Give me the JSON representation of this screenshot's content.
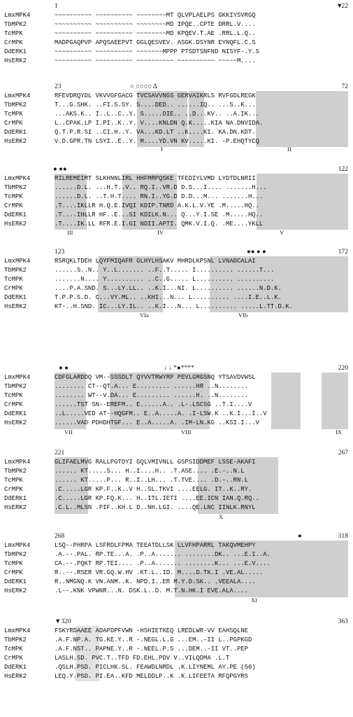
{
  "colors": {
    "shade": "#cfcfcf",
    "shade_light": "#e2e2e2",
    "text": "#111111"
  },
  "blocks": [
    {
      "start_label": "1",
      "end_label": "22",
      "start_mark": "",
      "overlay": "▼",
      "rows": [
        {
          "name": "LmxMPK4",
          "seq": "~~~~~~~~~~ ~~~~~~~~~~ ~~~~~~~~MT QLVPLAELPS GKKIYSVRGQ"
        },
        {
          "name": "TbMPK2",
          "seq": "~~~~~~~~~~ ~~~~~~~~~~ ~~~~~~~~MD IPQE..CPTE DRRL.V...."
        },
        {
          "name": "TcMPK",
          "seq": "~~~~~~~~~~ ~~~~~~~~~~ ~~~~~~~~MD KPQEV.T.AE .RRL.L.Q.."
        },
        {
          "name": "CrMPK",
          "seq": "MADPGAQPVP APQSAEEPVT GGLQESVEV. ASGK.DSYNR EYNQFL.C.S"
        },
        {
          "name": "DdERK1",
          "seq": "~~~~~~~~~~ ~~~~~~~~~~ ~~~~~~~MPPP PTSDTSNFND NISYF-.Y.S"
        },
        {
          "name": "HsERK2",
          "seq": "~~~~~~~~~~ ~~~~~~~~~~ ~~~~~~~~~~ ~~~~~~~~~~ ~~~~~M...."
        }
      ],
      "labels": []
    },
    {
      "start_label": "23",
      "end_label": "72",
      "start_mark": "",
      "overlay": "○ ○○○○  Δ",
      "rows": [
        {
          "name": "LmxMPK4",
          "seq": "RFEVDRQYDL VKVVGFGACG TVCSAVVNGS GERVAIKRLS RVFGDLREGK"
        },
        {
          "name": "TbMPK2",
          "seq": "T...G.SHK. ..FI.S.SY. S....DED.. ......IQ.. ...S..K..."
        },
        {
          "name": "TcMPK",
          "seq": "...AKS.K.. I..L..C..Y. S.....DIE.. ..D...KV.. ..A.IK..."
        },
        {
          "name": "CrMPK",
          "seq": "L..CPAK.LP I.PI..K..Y. V....KNLDN Q.K.....KIA NA.DNVIDA."
        },
        {
          "name": "DdERK1",
          "seq": "Q.T.P.R.SI ..CI.H..Y. VA...KD.LT ..K....KI. KA.DN.KDT."
        },
        {
          "name": "HsERK2",
          "seq": "V.D.GPR.TN LSYI..E..Y. M....YD.VN KV.....KI. -P.EHQTYCQ"
        }
      ],
      "labels": [
        "I",
        "II"
      ]
    },
    {
      "start_label": "",
      "end_label": "122",
      "start_mark": "● ●●",
      "overlay": "",
      "rows": [
        {
          "name": "LmxMPK4",
          "seq": "RILREMEIMT SLKHNNLIRL HHFMRPQSKE TFEDIYLVMD LYDTDLNRII"
        },
        {
          "name": "TbMPK2",
          "seq": "......D.L. ...H.T..V.. RQ.I..VR.D D.S...I.... .......H..."
        },
        {
          "name": "TcMPK",
          "seq": "......D.L. ..T.H.T.... RN.I..YG.D D.D...M... .......H..."
        },
        {
          "name": "CrMPK",
          "seq": ".T....IKLLR H.Q.E.IVQI KDIP.TNRD A.K.L.V.YE .M.....HQ.."
        },
        {
          "name": "DdERK1",
          "seq": ".T....IHLLR HF..E...SI KDILK.N... Q...Y.I.SE .M.....HQ.."
        },
        {
          "name": "HsERK2",
          "seq": ".T....IK.LL RFR.E.I.GI NDII.APTI. QMK.V.I.Q. .ME....YKLL"
        }
      ],
      "labels": [
        "III",
        "IV",
        "V"
      ]
    },
    {
      "start_label": "123",
      "end_label": "172",
      "start_mark": "",
      "overlay": "●● ● ●",
      "rows": [
        {
          "name": "LmxMPK4",
          "seq": "RSRQKLTDEH LQYFMIQAFR GLHYLHSAKV MHRDLKPSNL LVNADCALAI"
        },
        {
          "name": "TbMPK2",
          "seq": "......S..N.. Y..L....... ..F..T..... I.......... ......T..."
        },
        {
          "name": "TcMPK",
          "seq": ".......N.... Y.......... ..C..G..... L.......... .........."
        },
        {
          "name": "CrMPK",
          "seq": "....P.A.SND. S...LY.LL.. ..K.I...NI. L.......... ......N.D.K."
        },
        {
          "name": "DdERK1",
          "seq": "T.P.P.S.D. C...VY.ML.. ..KHI...N... L.......... ....I.E..L.K."
        },
        {
          "name": "HsERK2",
          "seq": "KT-..H.SND. IC...LY.IL.. ..K.I...N... L.......... .....L.TT.D.K."
        }
      ],
      "labels": [
        "VIa",
        "VIb"
      ]
    },
    {
      "start_label": "",
      "end_label": "220",
      "start_mark": "● ●",
      "overlay": "↓  ↓  *●****",
      "rows": [
        {
          "name": "LmxMPK4",
          "seq": "CDFGLARDDQ VM--SSSDLT QYVVTRWYRP PEVLGMGSNQ YTSAVDVWSL"
        },
        {
          "name": "TbMPK2",
          "seq": "........ CT--QT.A... E......... ......HR ..N........"
        },
        {
          "name": "TcMPK",
          "seq": "........ WT--V.DA... E......... ......H. ..N........"
        },
        {
          "name": "CrMPK",
          "seq": "......TST SN--EREFM.. E......A.. .L-.LSCSG ..T.I....V"
        },
        {
          "name": "DdERK1",
          "seq": "..L.....VED AT--HQGFM.. E..A.....A. .I-LSW.K ..K.I...I..V"
        },
        {
          "name": "HsERK2",
          "seq": "......VAD PDHDHTGF... E..A.....A. .IM-LN.KG ..KSI.I...V"
        }
      ],
      "labels": [
        "VII",
        "VIII",
        "IX"
      ]
    },
    {
      "start_label": "221",
      "end_label": "267",
      "start_mark": "",
      "overlay": "",
      "rows": [
        {
          "name": "LmxMPK4",
          "seq": "GLIFAELMVG RALLPGTDYI GQLVMIVNLL GSPSIDDMEF LSSE-AKAFI"
        },
        {
          "name": "TbMPK2",
          "seq": "...... KT.....S... H..I....H.. .T.ASE.... .E.-..N.L"
        },
        {
          "name": "TcMPK",
          "seq": "...... KT.....P... R..I..LH... .T.TVE.... .D.-..RN.L"
        },
        {
          "name": "CrMPK",
          "seq": ".C.....LGR KP.F..K..V H..SL.TKVI ....EELG. IT..K..RY."
        },
        {
          "name": "DdERK1",
          "seq": ".C.....LGR KP.FQ.K... H..ITL.IETI ....EE.ICN IAN.Q.RQ.."
        },
        {
          "name": "HsERK2",
          "seq": ".C.L..MLSN .PIF..KH.L D..NH.LGI. ....QE.LNC IINLK.RNYL"
        }
      ],
      "labels": [
        "X"
      ]
    },
    {
      "start_label": "268",
      "end_label": "318",
      "start_mark": "",
      "overlay": "●",
      "rows": [
        {
          "name": "LmxMPK4",
          "seq": "LSQ--PHRPA LSFRDLFPMA TEEATDLLSK LLVFHPARRL TAKQVMEHPY"
        },
        {
          "name": "TbMPK2",
          "seq": ".A.--.PAL. RP.TE...A. .P..A....... ........DK.. ...E.I..A."
        },
        {
          "name": "TcMPK",
          "seq": "CA.--.PQKT RP.TEI.... .P..A....... ........K... ...E.V...."
        },
        {
          "name": "CrMPK",
          "seq": "R..--.RSER VR.GQ.W.HV .KT.L..ID. M....D.TK.I .VE.AL....."
        },
        {
          "name": "DdERK1",
          "seq": "R..NMGNQ.K VN.ANM..K. NPD.I..ER M.Y.D.SK.. .VEEALA...."
        },
        {
          "name": "HsERK2",
          "seq": ".L--.KNK VPWNR...N. DSK.L..D. M.T.N.HK.I EVE.ALA...."
        }
      ],
      "labels": [
        "XI"
      ]
    },
    {
      "start_label": "",
      "end_label": "363",
      "start_mark": "▼320",
      "overlay": "",
      "rows": [
        {
          "name": "LmxMPK4",
          "seq": "FSKYRDAAEE ADAPDPFVWN -HSHIETKEQ LREDLWR-VV EAHSQLNE"
        },
        {
          "name": "TbMPK2",
          "seq": ".A.F.NP.A. TG.KE.Y..R -.NEGL.L.G ...EM..-II L..PGPKGD"
        },
        {
          "name": "TcMPK",
          "seq": ".A.F.NST.. PAPNE.Y..R -.NEEL.P.S ...DEM..-II VT..PEP"
        },
        {
          "name": "CrMPK",
          "seq": "LASLH.SD. PVC.T..TFD FD.EHL.PDV V..VILQDMA .L.T"
        },
        {
          "name": "DdERK1",
          "seq": ".QSLH.PSD. PICLHK.SL. FEAWDLNRDL .K.LIYNEML AY.PE (50)"
        },
        {
          "name": "HsERK2",
          "seq": "LEQ.Y.PSD. PI.EA..KFD MELDDLP..K .K.LIFEETA RFQPGYRS"
        }
      ],
      "labels": []
    }
  ]
}
